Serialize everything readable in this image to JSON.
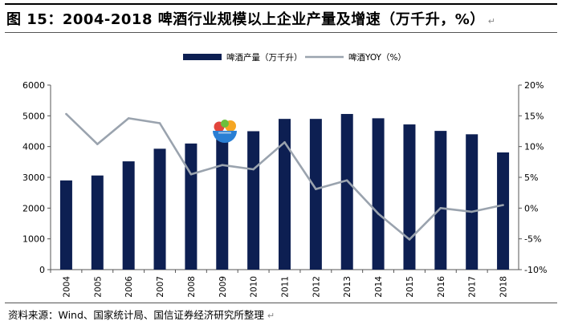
{
  "header": {
    "title": "图 15：2004-2018 啤酒行业规模以上企业产量及增速（万千升，%）",
    "return_mark": "↵"
  },
  "footer": {
    "source": "资料来源：Wind、国家统计局、国信证券经济研究所整理",
    "return_mark": "↵"
  },
  "colors": {
    "bar": "#0d1f52",
    "line": "#9aa3ae",
    "axis": "#555555",
    "logo_bowl": "#2a7fd4",
    "logo_orange": "#f5a623",
    "logo_green": "#6cbf3c",
    "logo_red": "#e2453c"
  },
  "logo": {
    "icon": "fruit-bowl-icon"
  },
  "chart_data": {
    "type": "bar+line",
    "categories": [
      "2004",
      "2005",
      "2006",
      "2007",
      "2008",
      "2009",
      "2010",
      "2011",
      "2012",
      "2013",
      "2014",
      "2015",
      "2016",
      "2017",
      "2018"
    ],
    "series": [
      {
        "name": "啤酒产量（万千升）",
        "type": "bar",
        "axis": "left",
        "values": [
          2900,
          3060,
          3520,
          3930,
          4100,
          4240,
          4500,
          4900,
          4900,
          5060,
          4920,
          4720,
          4510,
          4400,
          3810
        ]
      },
      {
        "name": "啤酒YOY（%）",
        "type": "line",
        "axis": "right",
        "values": [
          15.3,
          10.4,
          14.6,
          13.8,
          5.5,
          7.0,
          6.3,
          10.7,
          3.1,
          4.5,
          -0.9,
          -5.1,
          0.0,
          -0.6,
          0.5
        ]
      }
    ],
    "y_left": {
      "min": 0,
      "max": 6000,
      "ticks": [
        "0",
        "1000",
        "2000",
        "3000",
        "4000",
        "5000",
        "6000"
      ]
    },
    "y_right": {
      "min": -10,
      "max": 20,
      "ticks": [
        "-10%",
        "-5%",
        "0%",
        "5%",
        "10%",
        "15%",
        "20%"
      ]
    },
    "legend": {
      "position": "top",
      "items": [
        "啤酒产量（万千升）",
        "啤酒YOY（%）"
      ]
    },
    "grid": false
  }
}
